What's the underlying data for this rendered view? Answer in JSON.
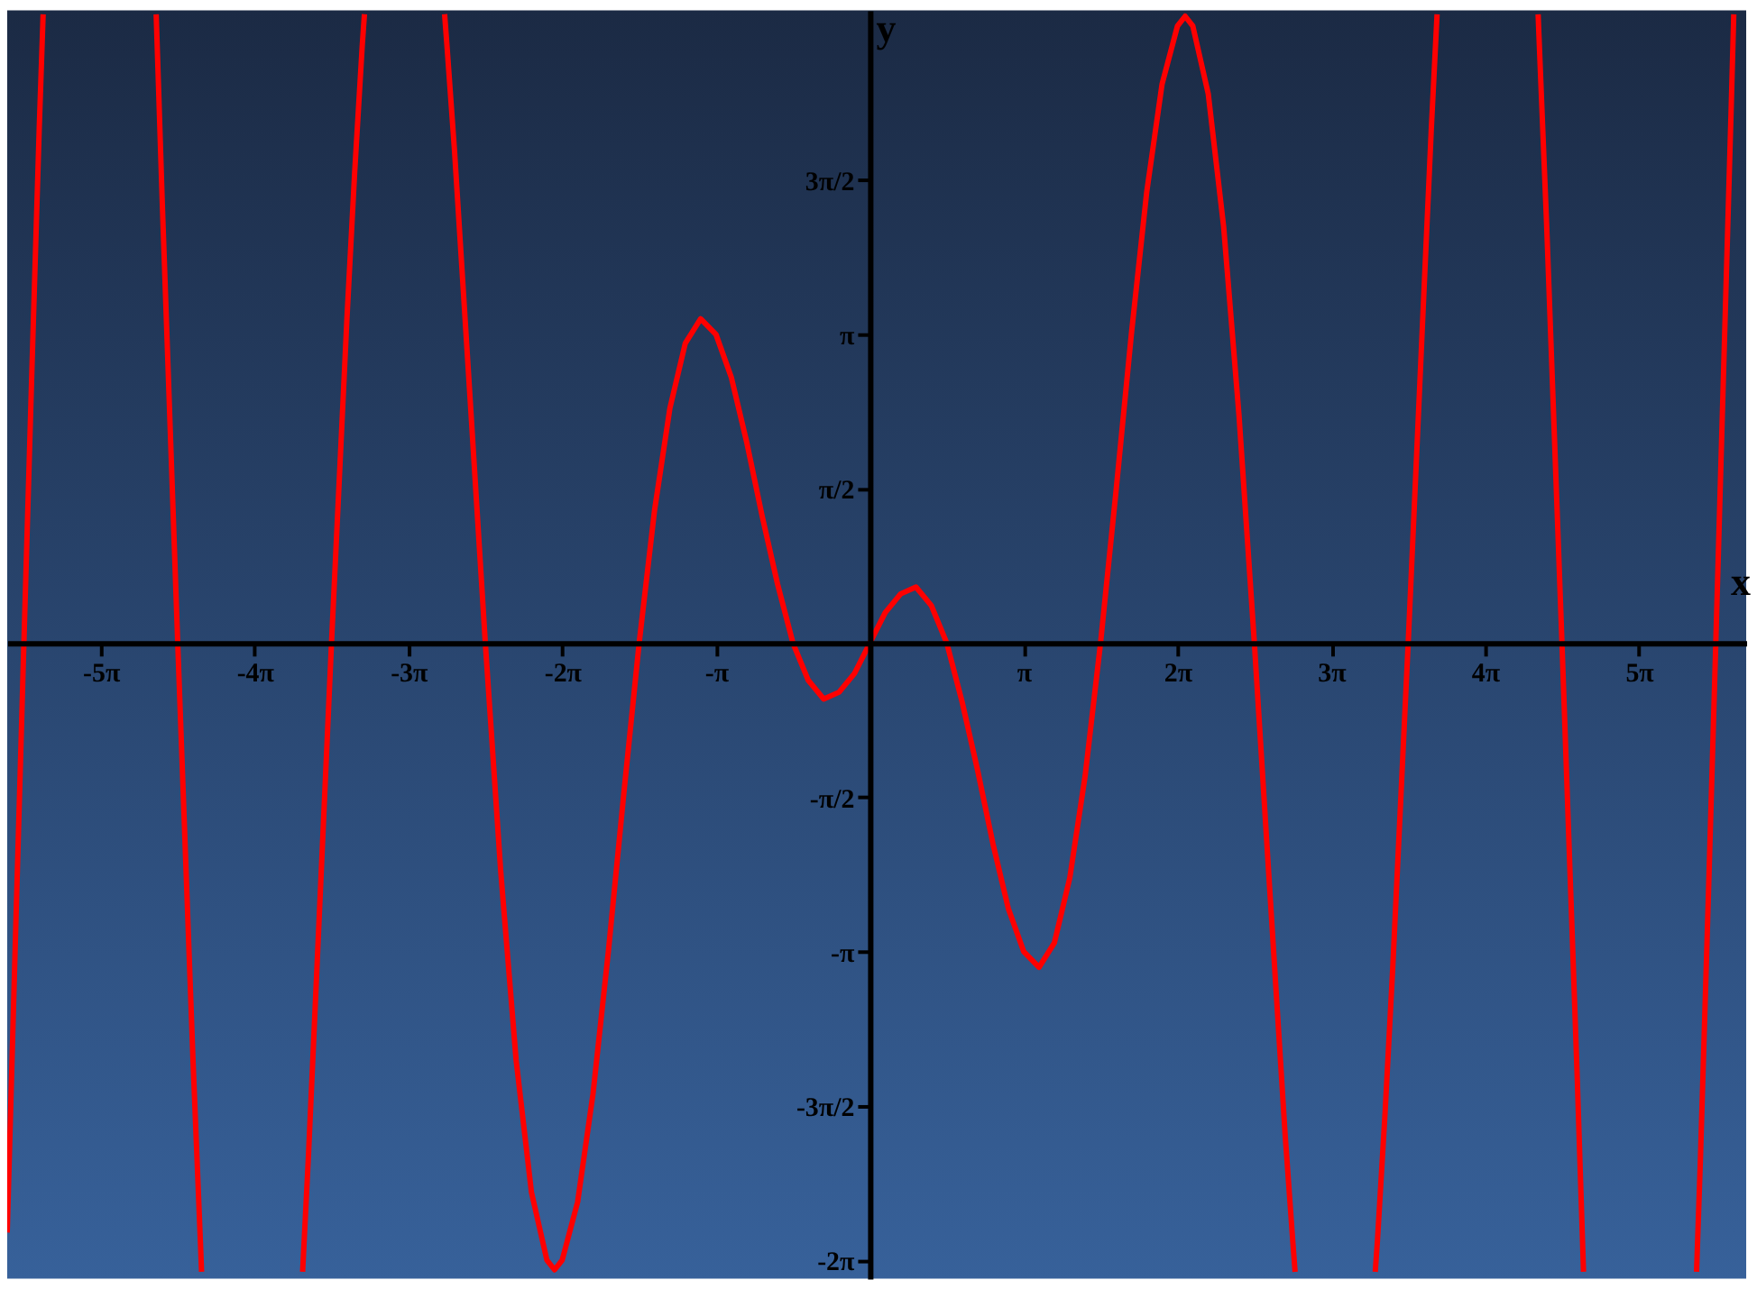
{
  "chart_data": {
    "type": "line",
    "xlabel": "x",
    "ylabel": "y",
    "x": [
      -17.62,
      -17.436,
      -17.279,
      -17.122,
      -16.965,
      -16.886,
      -16.5,
      -14.577,
      -14.451,
      -14.137,
      -13.823,
      -13.666,
      -13.65,
      -12.5,
      -11.586,
      -11.467,
      -11.31,
      -10.996,
      -10.681,
      -10.524,
      -10.367,
      -10.323,
      -9.5,
      -8.686,
      -8.639,
      -8.482,
      -8.168,
      -7.854,
      -7.54,
      -7.226,
      -6.912,
      -6.597,
      -6.44,
      -6.283,
      -5.969,
      -5.655,
      -5.341,
      -5.027,
      -4.712,
      -4.398,
      -4.084,
      -3.77,
      -3.456,
      -3.142,
      -2.827,
      -2.513,
      -2.199,
      -1.885,
      -1.571,
      -1.257,
      -0.942,
      -0.628,
      -0.314,
      0,
      0.314,
      0.628,
      0.942,
      1.257,
      1.571,
      1.885,
      2.199,
      2.513,
      2.827,
      3.142,
      3.456,
      3.77,
      4.084,
      4.398,
      4.712,
      5.027,
      5.341,
      5.655,
      5.969,
      6.283,
      6.44,
      6.597,
      6.912,
      7.226,
      7.54,
      7.854,
      8.168,
      8.482,
      8.639,
      8.686,
      9.5,
      10.323,
      10.367,
      10.524,
      10.681,
      10.996,
      11.31,
      11.467,
      11.586,
      12.5,
      13.65,
      13.666,
      13.823,
      14.137,
      14.451,
      14.577,
      15.5,
      16.886,
      16.965,
      17.122,
      17.279,
      17.436,
      17.593,
      17.646
    ],
    "series": [
      {
        "color": "#ff0000",
        "values": [
          -6.0,
          -2.73,
          0,
          2.67,
          5.25,
          6.4,
          null,
          6.4,
          4.46,
          0,
          -4.27,
          -6.19,
          -6.4,
          null,
          -6.4,
          -5.22,
          -3.49,
          0,
          3.3,
          4.78,
          6.09,
          6.4,
          null,
          6.4,
          6.09,
          5.0,
          2.51,
          0,
          -2.32,
          -4.24,
          -5.59,
          -6.28,
          -6.38,
          -6.28,
          -5.69,
          -4.59,
          -3.14,
          -1.54,
          0,
          1.35,
          2.39,
          3.05,
          3.3,
          3.14,
          2.7,
          2.04,
          1.29,
          0.6,
          0,
          -0.38,
          -0.57,
          -0.5,
          -0.31,
          0,
          0.31,
          0.5,
          0.57,
          0.38,
          0,
          -0.6,
          -1.29,
          -2.04,
          -2.7,
          -3.14,
          -3.3,
          -3.05,
          -2.39,
          -1.35,
          0,
          1.54,
          3.14,
          4.59,
          5.69,
          6.28,
          6.38,
          6.28,
          5.59,
          4.24,
          2.32,
          0,
          -2.51,
          -5.0,
          -6.09,
          -6.4,
          null,
          -6.4,
          -6.09,
          -4.78,
          -3.3,
          0,
          3.49,
          5.22,
          6.4,
          null,
          6.4,
          6.19,
          4.27,
          0,
          -4.46,
          -6.4,
          null,
          -6.4,
          -5.25,
          -2.67,
          0,
          2.73,
          5.44,
          6.4
        ]
      }
    ],
    "xlim": [
      -17.62,
      17.9
    ],
    "ylim": [
      -6.47,
      6.44
    ],
    "xticks": [
      {
        "value": -15.708,
        "label": "-5π"
      },
      {
        "value": -12.566,
        "label": "-4π"
      },
      {
        "value": -9.425,
        "label": "-3π"
      },
      {
        "value": -6.283,
        "label": "-2π"
      },
      {
        "value": -3.142,
        "label": "-π"
      },
      {
        "value": 3.142,
        "label": "π"
      },
      {
        "value": 6.283,
        "label": "2π"
      },
      {
        "value": 9.425,
        "label": "3π"
      },
      {
        "value": 12.566,
        "label": "4π"
      },
      {
        "value": 15.708,
        "label": "5π"
      }
    ],
    "yticks": [
      {
        "value": -6.283,
        "label": "-2π"
      },
      {
        "value": -4.712,
        "label": "-3π/2"
      },
      {
        "value": -3.142,
        "label": "-π"
      },
      {
        "value": -1.571,
        "label": "-π/2"
      },
      {
        "value": 1.571,
        "label": "π/2"
      },
      {
        "value": 3.142,
        "label": "π"
      },
      {
        "value": 4.712,
        "label": "3π/2"
      }
    ],
    "grid": false,
    "marker": "none",
    "line_style": "solid"
  }
}
